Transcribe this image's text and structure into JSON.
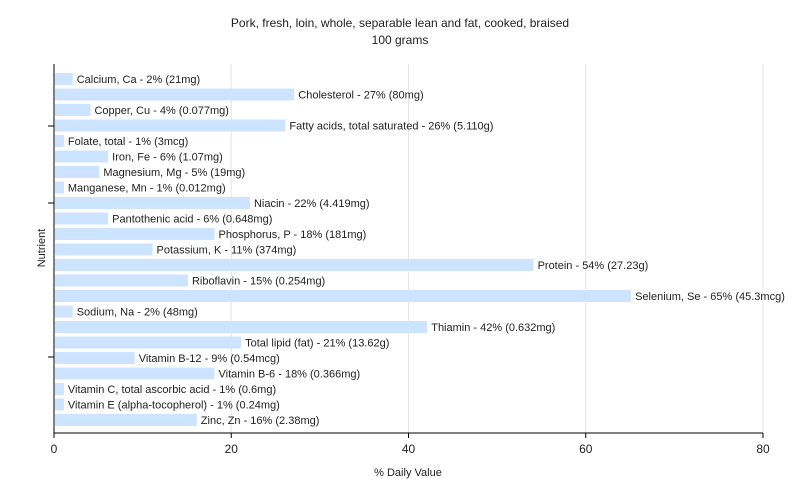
{
  "chart_data": {
    "type": "bar",
    "orientation": "horizontal",
    "title": "Pork, fresh, loin, whole, separable lean and fat, cooked, braised",
    "subtitle": "100 grams",
    "xlabel": "% Daily Value",
    "ylabel": "Nutrient",
    "xlim": [
      0,
      80
    ],
    "xticks": [
      "0",
      "20",
      "40",
      "60",
      "80"
    ],
    "grid": true,
    "bar_color": "#cce4ff",
    "categories": [
      "Calcium, Ca",
      "Cholesterol",
      "Copper, Cu",
      "Fatty acids, total saturated",
      "Folate, total",
      "Iron, Fe",
      "Magnesium, Mg",
      "Manganese, Mn",
      "Niacin",
      "Pantothenic acid",
      "Phosphorus, P",
      "Potassium, K",
      "Protein",
      "Riboflavin",
      "Selenium, Se",
      "Sodium, Na",
      "Thiamin",
      "Total lipid (fat)",
      "Vitamin B-12",
      "Vitamin B-6",
      "Vitamin C, total ascorbic acid",
      "Vitamin E (alpha-tocopherol)",
      "Zinc, Zn"
    ],
    "values": [
      2,
      27,
      4,
      26,
      1,
      6,
      5,
      1,
      22,
      6,
      18,
      11,
      54,
      15,
      65,
      2,
      42,
      21,
      9,
      18,
      1,
      1,
      16
    ],
    "labels": [
      "Calcium, Ca - 2% (21mg)",
      "Cholesterol - 27% (80mg)",
      "Copper, Cu - 4% (0.077mg)",
      "Fatty acids, total saturated - 26% (5.110g)",
      "Folate, total - 1% (3mcg)",
      "Iron, Fe - 6% (1.07mg)",
      "Magnesium, Mg - 5% (19mg)",
      "Manganese, Mn - 1% (0.012mg)",
      "Niacin - 22% (4.419mg)",
      "Pantothenic acid - 6% (0.648mg)",
      "Phosphorus, P - 18% (181mg)",
      "Potassium, K - 11% (374mg)",
      "Protein - 54% (27.23g)",
      "Riboflavin - 15% (0.254mg)",
      "Selenium, Se - 65% (45.3mcg)",
      "Sodium, Na - 2% (48mg)",
      "Thiamin - 42% (0.632mg)",
      "Total lipid (fat) - 21% (13.62g)",
      "Vitamin B-12 - 9% (0.54mcg)",
      "Vitamin B-6 - 18% (0.366mg)",
      "Vitamin C, total ascorbic acid - 1% (0.6mg)",
      "Vitamin E (alpha-tocopherol) - 1% (0.24mg)",
      "Zinc, Zn - 16% (2.38mg)"
    ]
  }
}
